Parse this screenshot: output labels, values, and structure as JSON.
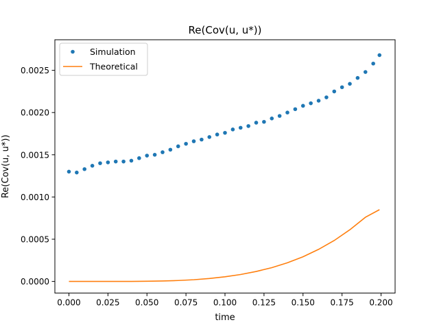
{
  "chart_data": {
    "type": "scatter",
    "title": "Re(Cov(u, u*))",
    "xlabel": "time",
    "ylabel": "Re(Cov(u, u*))",
    "xlim": [
      -0.009,
      0.209
    ],
    "ylim": [
      -0.000138,
      0.002862
    ],
    "xticks": [
      0.0,
      0.025,
      0.05,
      0.075,
      0.1,
      0.125,
      0.15,
      0.175,
      0.2
    ],
    "xtick_labels": [
      "0.000",
      "0.025",
      "0.050",
      "0.075",
      "0.100",
      "0.125",
      "0.150",
      "0.175",
      "0.200"
    ],
    "yticks": [
      0.0,
      0.0005,
      0.001,
      0.0015,
      0.002,
      0.0025
    ],
    "ytick_labels": [
      "0.0000",
      "0.0005",
      "0.0010",
      "0.0015",
      "0.0020",
      "0.0025"
    ],
    "grid": false,
    "legend_position": "upper-left",
    "series": [
      {
        "name": "Simulation",
        "kind": "points",
        "color": "#1f77b4",
        "x": [
          0.0,
          0.005,
          0.01,
          0.015,
          0.02,
          0.025,
          0.03,
          0.035,
          0.04,
          0.045,
          0.05,
          0.055,
          0.06,
          0.065,
          0.07,
          0.075,
          0.08,
          0.085,
          0.09,
          0.095,
          0.1,
          0.105,
          0.11,
          0.115,
          0.12,
          0.125,
          0.13,
          0.135,
          0.14,
          0.145,
          0.15,
          0.155,
          0.16,
          0.165,
          0.17,
          0.175,
          0.18,
          0.185,
          0.19,
          0.195,
          0.199
        ],
        "y": [
          0.0013,
          0.00129,
          0.00133,
          0.00137,
          0.0014,
          0.00141,
          0.00142,
          0.00142,
          0.00143,
          0.00146,
          0.00149,
          0.0015,
          0.00153,
          0.00156,
          0.0016,
          0.00163,
          0.00166,
          0.00168,
          0.00171,
          0.00174,
          0.00176,
          0.0018,
          0.00182,
          0.00184,
          0.00188,
          0.00189,
          0.00193,
          0.00196,
          0.002,
          0.00204,
          0.00208,
          0.00211,
          0.00214,
          0.00218,
          0.00225,
          0.0023,
          0.00234,
          0.00241,
          0.00248,
          0.00258,
          0.00268
        ]
      },
      {
        "name": "Theoretical",
        "kind": "line",
        "color": "#ff7f0e",
        "x": [
          0.0,
          0.01,
          0.02,
          0.03,
          0.04,
          0.05,
          0.06,
          0.07,
          0.08,
          0.09,
          0.1,
          0.11,
          0.12,
          0.13,
          0.14,
          0.15,
          0.16,
          0.17,
          0.18,
          0.19,
          0.199
        ],
        "y": [
          0.0,
          0.0,
          0.0,
          0.0,
          5e-07,
          2e-06,
          5e-06,
          1.1e-05,
          2e-05,
          3.5e-05,
          5.5e-05,
          8.2e-05,
          0.000118,
          0.000163,
          0.000221,
          0.000292,
          0.00038,
          0.000485,
          0.000612,
          0.00076,
          0.00085
        ]
      }
    ]
  }
}
